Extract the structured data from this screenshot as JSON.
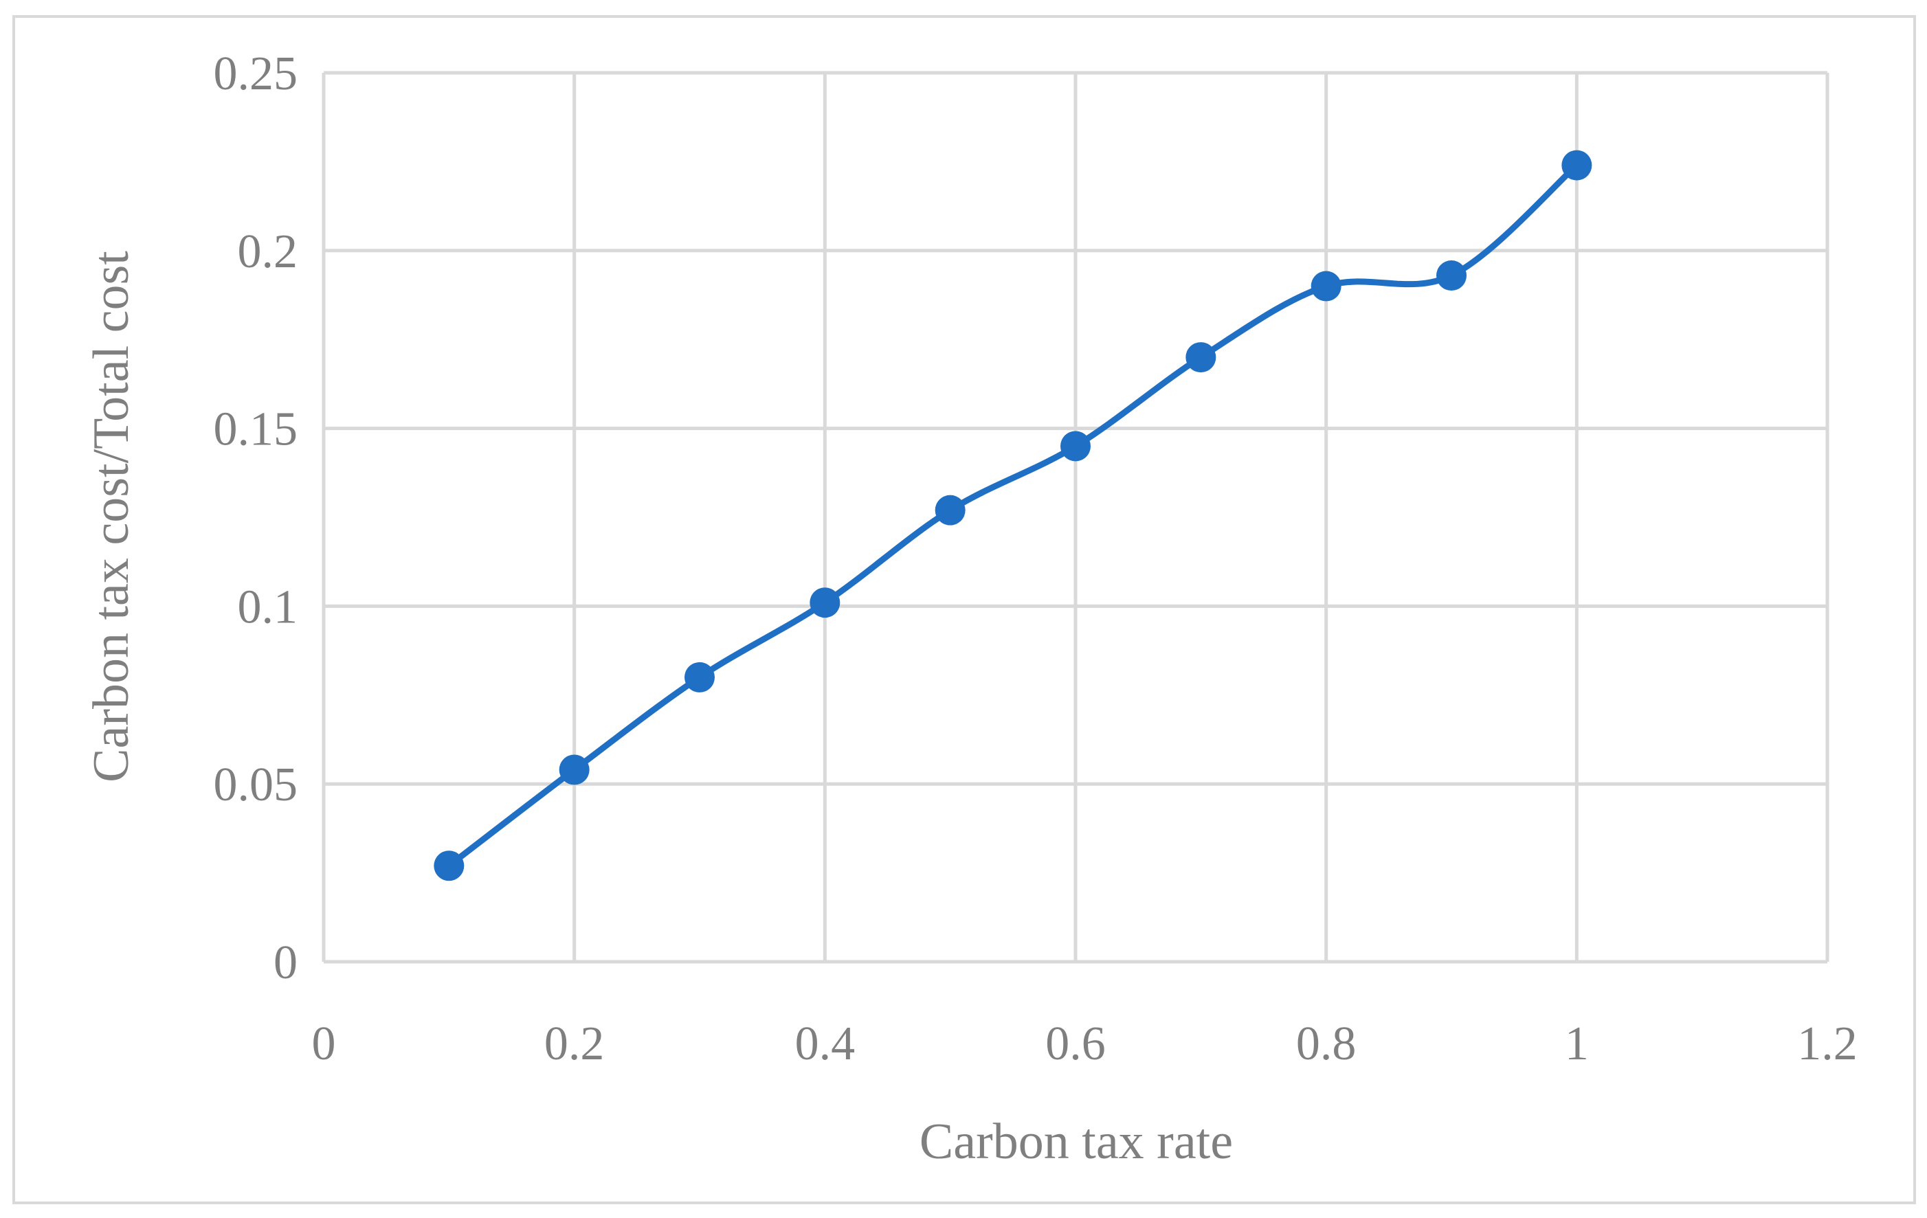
{
  "chart_data": {
    "type": "scatter",
    "title": "",
    "xlabel": "Carbon tax rate",
    "ylabel": "Carbon tax cost/Total cost",
    "xlim": [
      0,
      1.2
    ],
    "ylim": [
      0,
      0.25
    ],
    "x_ticks": [
      "0",
      "0.2",
      "0.4",
      "0.6",
      "0.8",
      "1",
      "1.2"
    ],
    "y_ticks": [
      "0",
      "0.05",
      "0.1",
      "0.15",
      "0.2",
      "0.25"
    ],
    "grid": true,
    "legend": "none",
    "line": "smoothed",
    "markers": true,
    "color": "#1f6fc5",
    "gridColor": "#d9d9d9",
    "labelColor": "#7f7f7f",
    "series": [
      {
        "x": [
          0.1,
          0.2,
          0.3,
          0.4,
          0.5,
          0.6,
          0.7,
          0.8,
          0.9,
          1.0
        ],
        "y": [
          0.027,
          0.054,
          0.08,
          0.101,
          0.127,
          0.145,
          0.17,
          0.19,
          0.193,
          0.224
        ]
      }
    ]
  }
}
